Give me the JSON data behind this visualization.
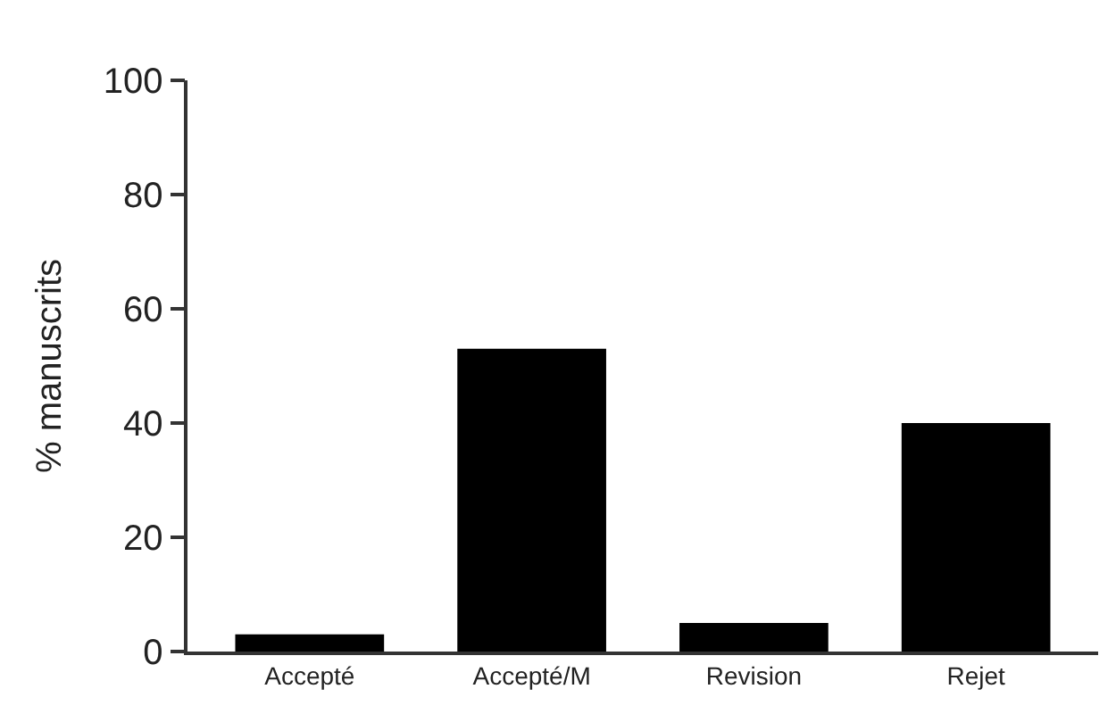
{
  "chart_data": {
    "type": "bar",
    "ylabel": "% manuscrits",
    "categories": [
      "Accepté",
      "Accepté/M",
      "Revision",
      "Rejet"
    ],
    "values": [
      3,
      53,
      5,
      40
    ],
    "color": "#000000",
    "ylim": [
      0,
      100
    ],
    "yticks": [
      0,
      20,
      40,
      60,
      80,
      100
    ]
  }
}
